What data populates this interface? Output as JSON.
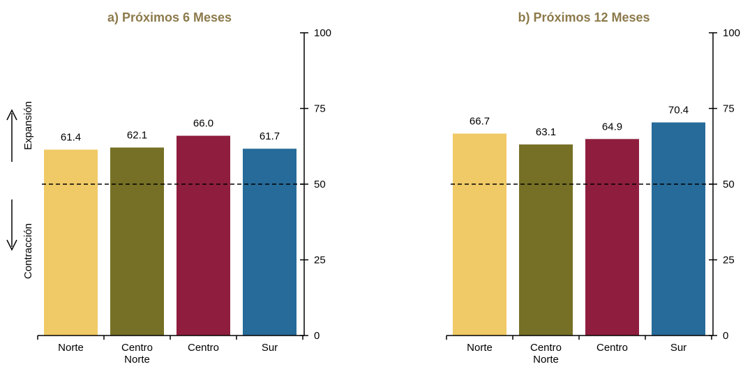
{
  "chart_data": [
    {
      "type": "bar",
      "title": "a) Próximos 6 Meses",
      "categories": [
        "Norte",
        "Centro Norte",
        "Centro",
        "Sur"
      ],
      "values": [
        61.4,
        62.1,
        66.0,
        61.7
      ],
      "value_labels": [
        "61.4",
        "62.1",
        "66.0",
        "61.7"
      ],
      "colors": [
        "#f0ca66",
        "#757025",
        "#8f1e3e",
        "#266b99"
      ],
      "ylim": [
        0,
        100
      ],
      "yticks": [
        "0",
        "25",
        "50",
        "75",
        "100"
      ],
      "y_axis_side": "right",
      "reference_line": 50,
      "side_labels": {
        "up": "Expansión",
        "down": "Contracción"
      }
    },
    {
      "type": "bar",
      "title": "b) Próximos 12 Meses",
      "categories": [
        "Norte",
        "Centro Norte",
        "Centro",
        "Sur"
      ],
      "values": [
        66.7,
        63.1,
        64.9,
        70.4
      ],
      "value_labels": [
        "66.7",
        "63.1",
        "64.9",
        "70.4"
      ],
      "colors": [
        "#f0ca66",
        "#757025",
        "#8f1e3e",
        "#266b99"
      ],
      "ylim": [
        0,
        100
      ],
      "yticks": [
        "0",
        "25",
        "50",
        "75",
        "100"
      ],
      "y_axis_side": "right",
      "reference_line": 50
    }
  ]
}
